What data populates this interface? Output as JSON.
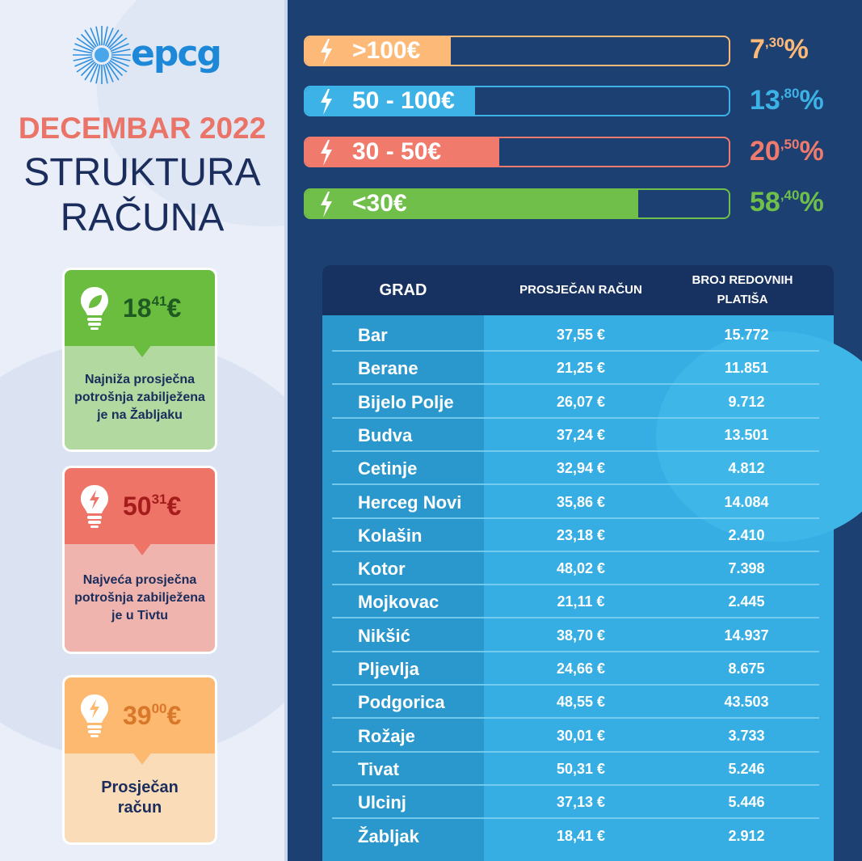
{
  "logo": {
    "text": "epcg"
  },
  "title": {
    "line1": "DECEMBAR 2022",
    "line2": "STRUKTURA",
    "line3": "RAČUNA"
  },
  "colors": {
    "orange": "#fdb977",
    "blue": "#3cb2e6",
    "red": "#f07b6d",
    "green": "#6fbf4a",
    "navy": "#1d4073"
  },
  "cards": [
    {
      "value_main": "18",
      "value_sup": "41",
      "value_suffix": "€",
      "text_lines": [
        "Najniža prosječna",
        "potrošnja zabilježena",
        "je na Žabljaku"
      ],
      "icon": "leaf-bulb-icon"
    },
    {
      "value_main": "50",
      "value_sup": "31",
      "value_suffix": "€",
      "text_lines": [
        "Najveća prosječna",
        "potrošnja zabilježena",
        "je u Tivtu"
      ],
      "icon": "bolt-bulb-icon"
    },
    {
      "value_main": "39",
      "value_sup": "00",
      "value_suffix": "€",
      "text_lines": [
        "Prosječan",
        "račun"
      ],
      "icon": "bolt-bulb-icon"
    }
  ],
  "bars": [
    {
      "label": ">100€",
      "pct_main": "7",
      "pct_sup": ",30",
      "pct_suffix": "%",
      "fraction": 0.073,
      "icon": "bolt-icon"
    },
    {
      "label": "50 - 100€",
      "pct_main": "13",
      "pct_sup": ",80",
      "pct_suffix": "%",
      "fraction": 0.138,
      "icon": "bolt-icon"
    },
    {
      "label": "30 - 50€",
      "pct_main": "20",
      "pct_sup": ",50",
      "pct_suffix": "%",
      "fraction": 0.205,
      "icon": "bolt-icon"
    },
    {
      "label": "<30€",
      "pct_main": "58",
      "pct_sup": ",40",
      "pct_suffix": "%",
      "fraction": 0.584,
      "icon": "bolt-icon"
    }
  ],
  "table": {
    "headers": [
      "GRAD",
      "PROSJEČAN RAČUN",
      "BROJ REDOVNIH PLATIŠA"
    ],
    "rows": [
      [
        "Bar",
        "37,55 €",
        "15.772"
      ],
      [
        "Berane",
        "21,25 €",
        "11.851"
      ],
      [
        "Bijelo Polje",
        "26,07 €",
        "9.712"
      ],
      [
        "Budva",
        "37,24 €",
        "13.501"
      ],
      [
        "Cetinje",
        "32,94 €",
        "4.812"
      ],
      [
        "Herceg Novi",
        "35,86 €",
        "14.084"
      ],
      [
        "Kolašin",
        "23,18 €",
        "2.410"
      ],
      [
        "Kotor",
        "48,02 €",
        "7.398"
      ],
      [
        "Mojkovac",
        "21,11 €",
        "2.445"
      ],
      [
        "Nikšić",
        "38,70 €",
        "14.937"
      ],
      [
        "Pljevlja",
        "24,66 €",
        "8.675"
      ],
      [
        "Podgorica",
        "48,55 €",
        "43.503"
      ],
      [
        "Rožaje",
        "30,01 €",
        "3.733"
      ],
      [
        "Tivat",
        "50,31 €",
        "5.246"
      ],
      [
        "Ulcinj",
        "37,13 €",
        "5.446"
      ],
      [
        "Žabljak",
        "18,41 €",
        "2.912"
      ]
    ]
  }
}
